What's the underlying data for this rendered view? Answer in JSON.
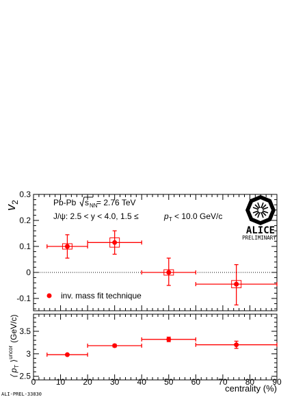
{
  "chart_data": [
    {
      "type": "scatter",
      "panel": "top",
      "ylabel": "v2",
      "ylim": [
        -0.18,
        0.3
      ],
      "yticks": [
        -0.1,
        0,
        0.1,
        0.2,
        0.3
      ],
      "xlim": [
        0,
        90
      ],
      "reference_line": 0,
      "grid": false,
      "legend_placement": "bottom-left",
      "annotations": {
        "system": "Pb-Pb",
        "energy": "= 2.76 TeV",
        "kinematics": "J/ψ: 2.5 < y < 4.0,  1.5 ≤",
        "pt_range": "< 10.0 GeV/c"
      },
      "series": [
        {
          "name": "inv. mass fit technique",
          "color": "#ff0000",
          "points": [
            {
              "x": 12.5,
              "xlo": 5,
              "xhi": 20,
              "y": 0.1,
              "ylo": 0.055,
              "yhi": 0.145,
              "syslo": 0.095,
              "syshi": 0.105
            },
            {
              "x": 30,
              "xlo": 20,
              "xhi": 40,
              "y": 0.115,
              "ylo": 0.07,
              "yhi": 0.16,
              "syslo": 0.097,
              "syshi": 0.133
            },
            {
              "x": 50,
              "xlo": 40,
              "xhi": 60,
              "y": 0.0,
              "ylo": -0.05,
              "yhi": 0.055,
              "syslo": -0.003,
              "syshi": 0.003
            },
            {
              "x": 75,
              "xlo": 60,
              "xhi": 90,
              "y": -0.045,
              "ylo": -0.125,
              "yhi": 0.03,
              "syslo": -0.063,
              "syshi": -0.035
            }
          ]
        }
      ]
    },
    {
      "type": "scatter",
      "panel": "bottom",
      "ylabel": "⟨ p",
      "ylabel_sub": "T",
      "ylabel_sup": "uncor",
      "ylabel_unit": "(GeV/c)",
      "xlabel": "centrality (%)",
      "ylim": [
        2.42,
        3.88
      ],
      "yticks": [
        2.5,
        3,
        3.5
      ],
      "xlim": [
        0,
        90
      ],
      "xticks": [
        0,
        10,
        20,
        30,
        40,
        50,
        60,
        70,
        80,
        90
      ],
      "series": [
        {
          "color": "#ff0000",
          "points": [
            {
              "x": 12.5,
              "xlo": 5,
              "xhi": 20,
              "y": 2.98,
              "ylo": 2.965,
              "yhi": 2.995
            },
            {
              "x": 30,
              "xlo": 20,
              "xhi": 40,
              "y": 3.18,
              "ylo": 3.15,
              "yhi": 3.21
            },
            {
              "x": 50,
              "xlo": 40,
              "xhi": 60,
              "y": 3.32,
              "ylo": 3.27,
              "yhi": 3.37
            },
            {
              "x": 75,
              "xlo": 60,
              "xhi": 90,
              "y": 3.2,
              "ylo": 3.12,
              "yhi": 3.28
            }
          ]
        }
      ]
    }
  ],
  "logo": {
    "name": "ALICE",
    "subtitle": "PRELIMINARY",
    "icon": "alice-logo-icon"
  },
  "footer": {
    "code": "ALI-PREL-33830"
  }
}
